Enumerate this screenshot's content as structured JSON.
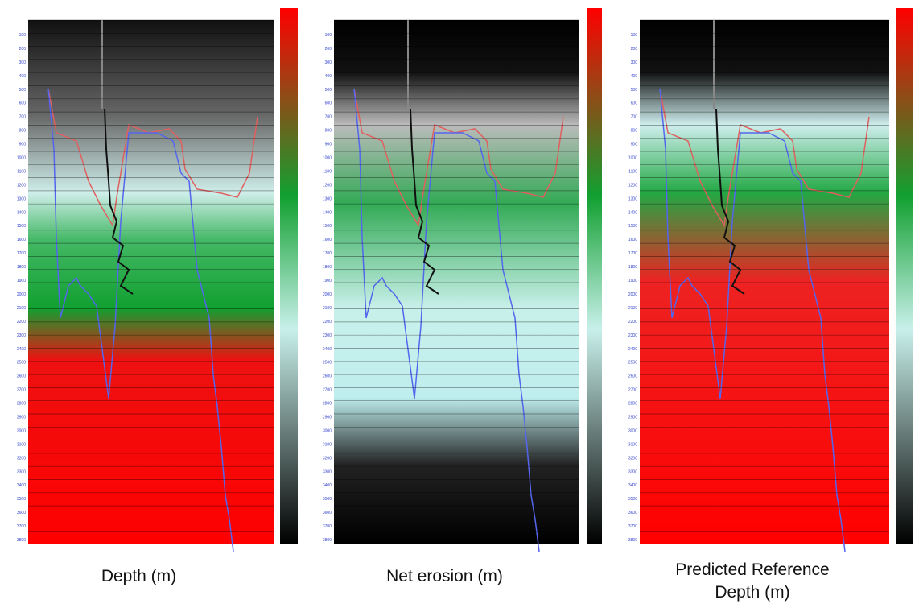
{
  "depth_axis": [
    "100",
    "200",
    "300",
    "400",
    "500",
    "600",
    "700",
    "800",
    "900",
    "1000",
    "1100",
    "1200",
    "1300",
    "1400",
    "1500",
    "1600",
    "1700",
    "1800",
    "1900",
    "2000",
    "2100",
    "2200",
    "2300",
    "2400",
    "2500",
    "2600",
    "2700",
    "2800",
    "2900",
    "3000",
    "3100",
    "3200",
    "3300",
    "3400",
    "3500",
    "3600",
    "3700",
    "3800"
  ],
  "panels": [
    {
      "caption": [
        "Depth (m)"
      ]
    },
    {
      "caption": [
        "Net erosion (m)"
      ]
    },
    {
      "caption": [
        "Predicted Reference",
        "Depth (m)"
      ]
    }
  ]
}
